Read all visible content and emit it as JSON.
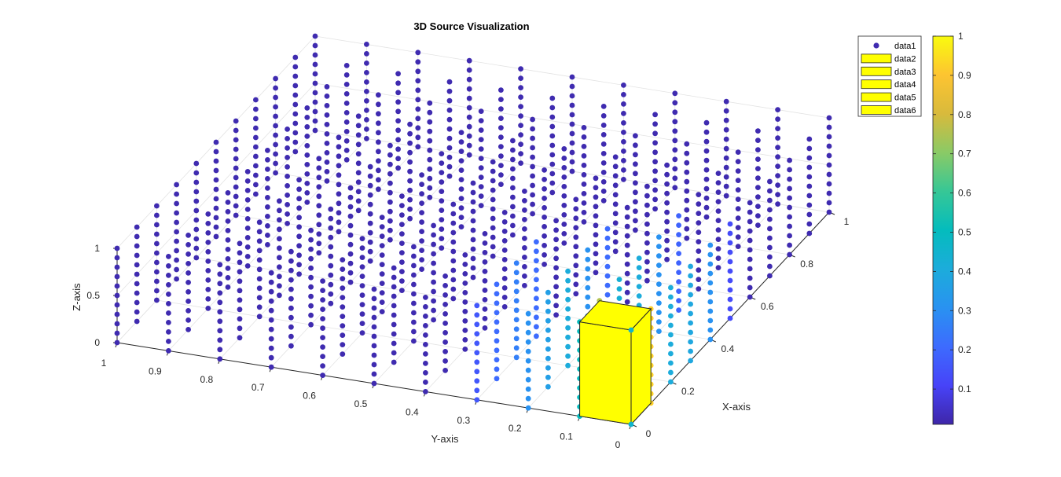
{
  "chart_data": {
    "type": "scatter",
    "title": "3D Source Visualization",
    "xlabel": "X-axis",
    "ylabel": "Y-axis",
    "zlabel": "Z-axis",
    "xlim": [
      0,
      1
    ],
    "ylim": [
      0,
      1
    ],
    "zlim": [
      0,
      1
    ],
    "x_ticks": [
      "0",
      "0.2",
      "0.4",
      "0.6",
      "0.8",
      "1"
    ],
    "y_ticks": [
      "0",
      "0.1",
      "0.2",
      "0.3",
      "0.4",
      "0.5",
      "0.6",
      "0.7",
      "0.8",
      "0.9",
      "1"
    ],
    "z_ticks": [
      "0",
      "0.5",
      "1"
    ],
    "grid": true,
    "grid_x": [
      0,
      0.1,
      0.2,
      0.3,
      0.4,
      0.5,
      0.6,
      0.7,
      0.8,
      0.9,
      1.0
    ],
    "grid_y": [
      0,
      0.1,
      0.2,
      0.3,
      0.4,
      0.5,
      0.6,
      0.7,
      0.8,
      0.9,
      1.0
    ],
    "grid_z": [
      0,
      0.1,
      0.2,
      0.3,
      0.4,
      0.5,
      0.6,
      0.7,
      0.8,
      0.9,
      1.0
    ],
    "source_columns": [
      {
        "x": 0,
        "y": 0,
        "color_value": 0.4
      },
      {
        "x": 0.1,
        "y": 0,
        "color_value": 0.92
      },
      {
        "x": 0.2,
        "y": 0,
        "color_value": 0.4
      },
      {
        "x": 0.3,
        "y": 0,
        "color_value": 0.38
      },
      {
        "x": 0.4,
        "y": 0,
        "color_value": 0.3
      },
      {
        "x": 0.5,
        "y": 0,
        "color_value": 0.12
      },
      {
        "x": 0,
        "y": 0.1,
        "color_value": 0.5
      },
      {
        "x": 0.1,
        "y": 0.1,
        "color_value": 0.75
      },
      {
        "x": 0.2,
        "y": 0.1,
        "color_value": 0.42
      },
      {
        "x": 0.3,
        "y": 0.1,
        "color_value": 0.4
      },
      {
        "x": 0.4,
        "y": 0.1,
        "color_value": 0.3
      },
      {
        "x": 0.5,
        "y": 0.1,
        "color_value": 0.18
      },
      {
        "x": 0,
        "y": 0.2,
        "color_value": 0.3
      },
      {
        "x": 0.1,
        "y": 0.2,
        "color_value": 0.35
      },
      {
        "x": 0.2,
        "y": 0.2,
        "color_value": 0.4
      },
      {
        "x": 0.3,
        "y": 0.2,
        "color_value": 0.3
      },
      {
        "x": 0.4,
        "y": 0.2,
        "color_value": 0.2
      },
      {
        "x": 0,
        "y": 0.3,
        "color_value": 0.15
      },
      {
        "x": 0.1,
        "y": 0.3,
        "color_value": 0.2
      },
      {
        "x": 0.2,
        "y": 0.3,
        "color_value": 0.25
      },
      {
        "x": 0.3,
        "y": 0.3,
        "color_value": 0.2
      }
    ],
    "source_box": {
      "x": [
        0,
        0.1
      ],
      "y": [
        0,
        0.1
      ],
      "z": [
        0,
        1
      ],
      "color": "#FFFF00"
    },
    "background_color": "#3F2BB0",
    "legend": {
      "placement": "top-right",
      "entries": [
        {
          "label": "data1",
          "marker": "dot"
        },
        {
          "label": "data2",
          "marker": "patch"
        },
        {
          "label": "data3",
          "marker": "patch"
        },
        {
          "label": "data4",
          "marker": "patch"
        },
        {
          "label": "data5",
          "marker": "patch"
        },
        {
          "label": "data6",
          "marker": "patch"
        }
      ]
    },
    "colorbar": {
      "colormap": "parula",
      "range": [
        0.01,
        1
      ],
      "ticks": [
        "0.1",
        "0.2",
        "0.3",
        "0.4",
        "0.5",
        "0.6",
        "0.7",
        "0.8",
        "0.9",
        "1"
      ]
    }
  }
}
